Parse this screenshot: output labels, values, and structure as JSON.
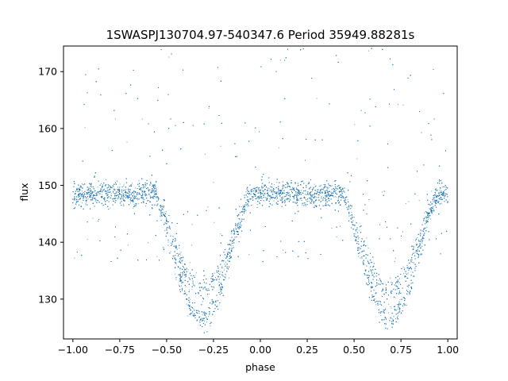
{
  "chart_data": {
    "type": "scatter",
    "title": "1SWASPJ130704.97-540347.6 Period 35949.88281s",
    "xlabel": "phase",
    "ylabel": "flux",
    "xlim": [
      -1.05,
      1.05
    ],
    "ylim": [
      123,
      174.5
    ],
    "x_ticks": [
      -1.0,
      -0.75,
      -0.5,
      -0.25,
      0.0,
      0.25,
      0.5,
      0.75,
      1.0
    ],
    "x_tick_labels": [
      "−1.00",
      "−0.75",
      "−0.50",
      "−0.25",
      "0.00",
      "0.25",
      "0.50",
      "0.75",
      "1.00"
    ],
    "y_ticks": [
      130,
      140,
      150,
      160,
      170
    ],
    "y_tick_labels": [
      "130",
      "140",
      "150",
      "160",
      "170"
    ],
    "grid": false,
    "point_color": "#1f77b4",
    "series": [
      {
        "baseline_flux": 148.5,
        "baseline_scatter": 1.3,
        "dips": [
          {
            "center_phase": -0.31,
            "min_flux_upper_branch": 131.5,
            "min_flux_lower_branch": 126.5,
            "ingress_phase": -0.55,
            "egress_phase": -0.03
          },
          {
            "center_phase": 0.69,
            "min_flux_upper_branch": 131.5,
            "min_flux_lower_branch": 126.5,
            "ingress_phase": 0.45,
            "egress_phase": 0.97
          }
        ]
      }
    ]
  }
}
